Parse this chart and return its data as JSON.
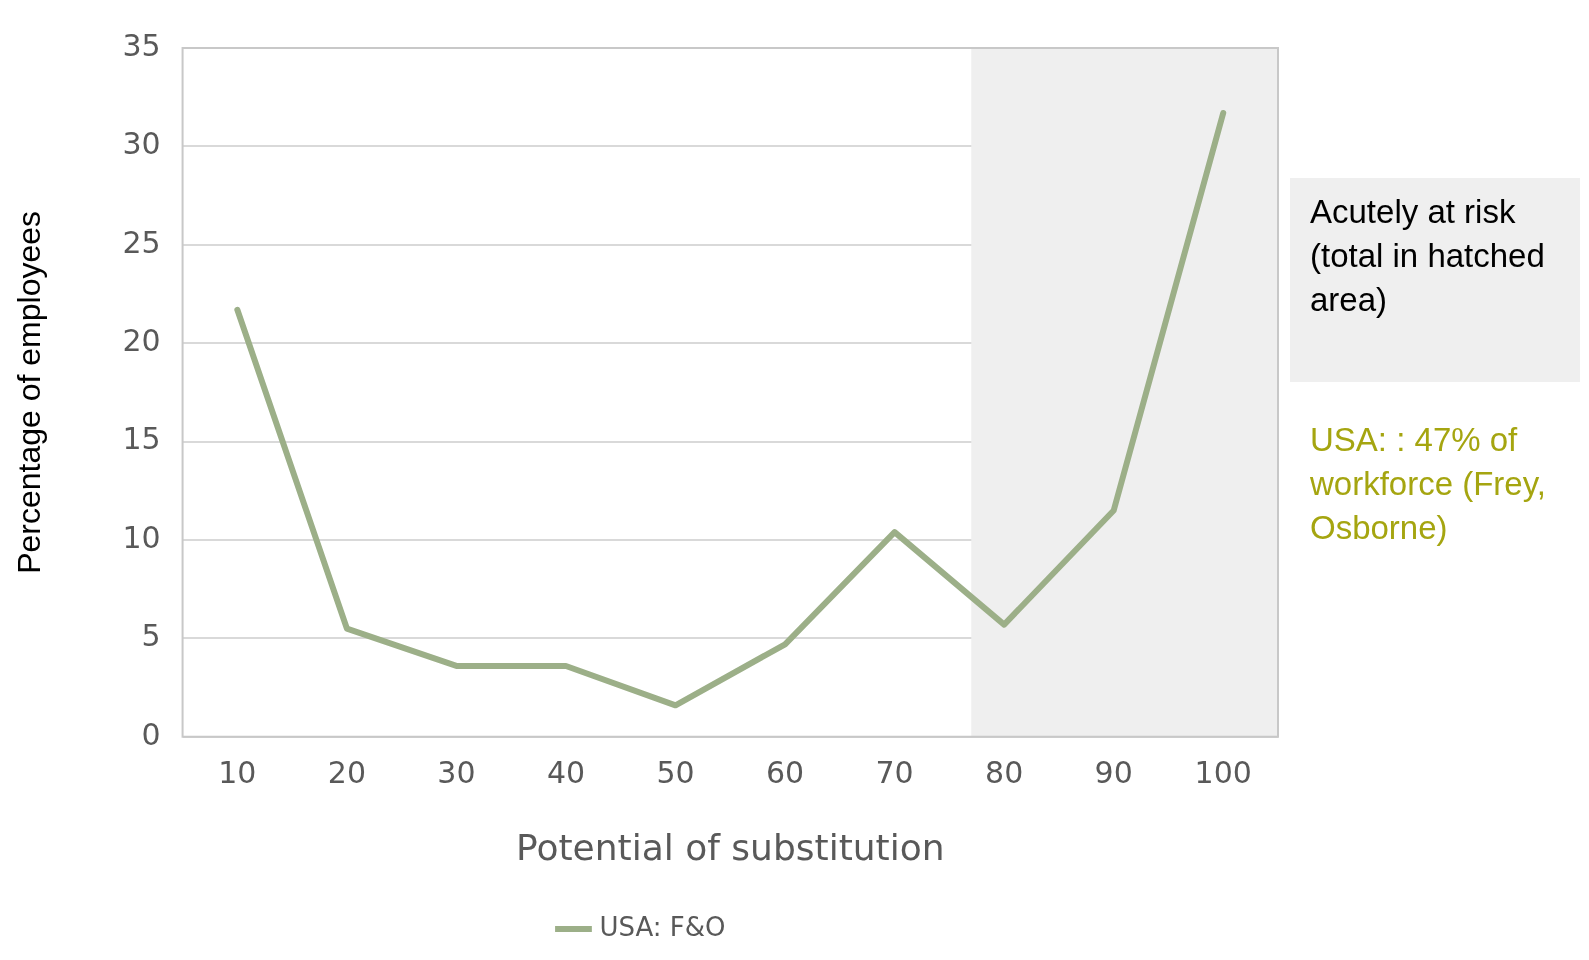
{
  "chart_data": {
    "type": "line",
    "xlabel": "Potential of substitution",
    "ylabel": "Percentage of employees",
    "x": [
      10,
      20,
      30,
      40,
      50,
      60,
      70,
      80,
      90,
      100
    ],
    "series": [
      {
        "name": "USA: F&O",
        "color": "#9caf88",
        "values": [
          21.7,
          5.5,
          3.6,
          3.6,
          1.6,
          4.7,
          10.4,
          5.7,
          11.5,
          31.7
        ]
      }
    ],
    "xlim": [
      5,
      105
    ],
    "xticks": [
      10,
      20,
      30,
      40,
      50,
      60,
      70,
      80,
      90,
      100
    ],
    "ylim": [
      0,
      35
    ],
    "yticks": [
      0,
      5,
      10,
      15,
      20,
      25,
      30,
      35
    ],
    "bands": [
      {
        "axis": "x",
        "from": 77,
        "to": 105,
        "color": "#efefef"
      }
    ],
    "grid": "y",
    "legend": "bottom",
    "marker": "none",
    "line_style": "solid",
    "annotations": [
      "Acutely at risk (total in hatched area)",
      "USA: : 47% of workforce (Frey, Osborne)"
    ]
  }
}
